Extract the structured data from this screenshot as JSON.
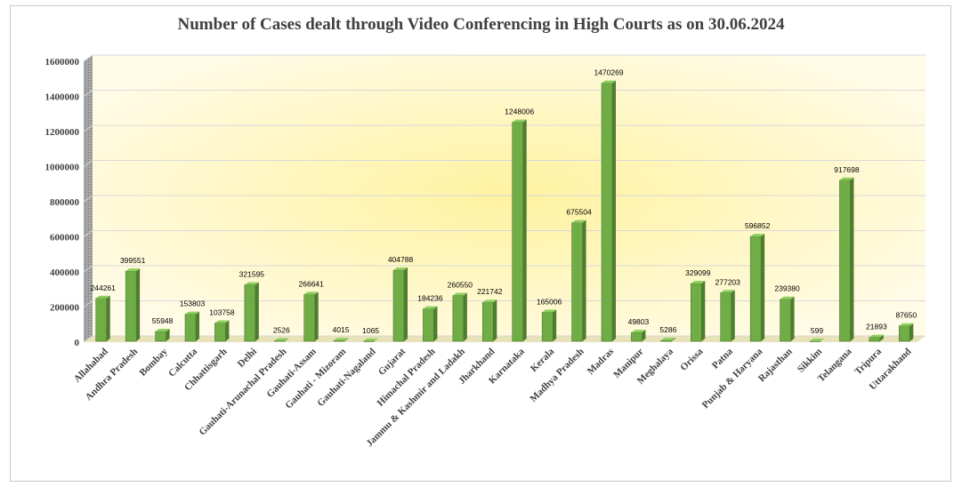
{
  "chart_data": {
    "type": "bar",
    "title": "Number of Cases dealt through Video Conferencing in High Courts as on 30.06.2024",
    "xlabel": "",
    "ylabel": "",
    "ylim": [
      0,
      1600000
    ],
    "yticks": [
      0,
      200000,
      400000,
      600000,
      800000,
      1000000,
      1200000,
      1400000,
      1600000
    ],
    "ytick_labels": [
      "0",
      "200000",
      "400000",
      "600000",
      "800000",
      "1000000",
      "1200000",
      "1400000",
      "1600000"
    ],
    "grid": true,
    "legend": "none",
    "categories": [
      "Allahabad",
      "Andhra Pradesh",
      "Bombay",
      "Calcutta",
      "Chhattisgarh",
      "Delhi",
      "Gauhati-Arunachal Pradesh",
      "Gauhati-Assam",
      "Gauhati - Mizoram",
      "Gauhati-Nagaland",
      "Gujarat",
      "Himachal Pradesh",
      "Jammu & Kashmir and Ladakh",
      "Jharkhand",
      "Karnataka",
      "Kerala",
      "Madhya Pradesh",
      "Madras",
      "Manipur",
      "Meghalaya",
      "Orissa",
      "Patna",
      "Punjab & Haryana",
      "Rajasthan",
      "Sikkim",
      "Telangana",
      "Tripura",
      "Uttarakhand"
    ],
    "values": [
      244261,
      399551,
      55948,
      153803,
      103758,
      321595,
      2526,
      266641,
      4015,
      1065,
      404788,
      184236,
      260550,
      221742,
      1248006,
      165006,
      675504,
      1470269,
      49803,
      5286,
      329099,
      277203,
      596852,
      239380,
      599,
      917698,
      21893,
      87650
    ],
    "data_labels": [
      "244261",
      "399551",
      "55948",
      "153803",
      "103758",
      "321595",
      "2526",
      "266641",
      "4015",
      "1065",
      "404788",
      "184236",
      "260550",
      "221742",
      "1248006",
      "165006",
      "675504",
      "1470269",
      "49803",
      "5286",
      "329099",
      "277203",
      "596852",
      "239380",
      "599",
      "917698",
      "21893",
      "87650"
    ],
    "colors": {
      "bar_front": "#70ad47",
      "bar_top": "#8fcf5f",
      "bar_side": "#4e7d2f",
      "bar_stroke": "#3d6426",
      "grid": "#d9d9d9",
      "plot_bg_center": "#fff2a0",
      "plot_bg_edge": "#fffbe6",
      "side_wall": "#8c8c8c"
    }
  }
}
